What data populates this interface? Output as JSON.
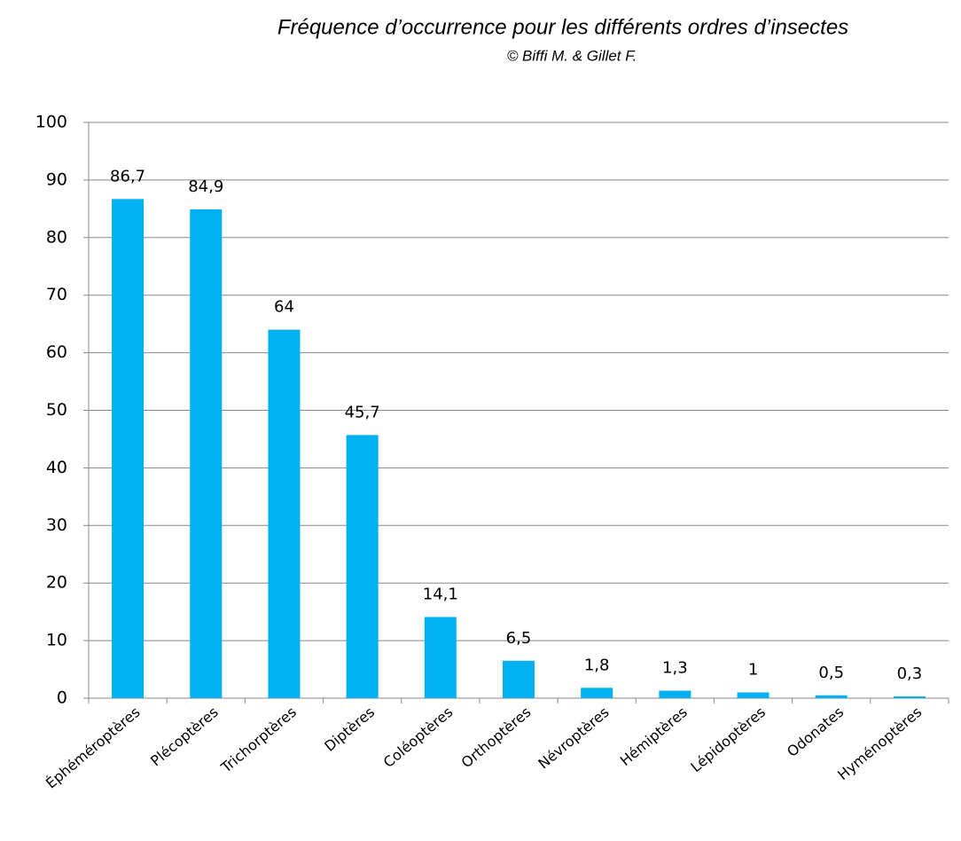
{
  "chart_data": {
    "type": "bar",
    "title": "Fréquence d’occurrence pour les différents ordres d’insectes",
    "subtitle": "© Biffi M. & Gillet F.",
    "categories": [
      "Éphéméroptères",
      "Plécoptères",
      "Trichorptères",
      "Diptères",
      "Coléoptères",
      "Orthoptères",
      "Névroptères",
      "Hémiptères",
      "Lépidoptères",
      "Odonates",
      "Hyménoptères"
    ],
    "values": [
      86.7,
      84.9,
      64,
      45.7,
      14.1,
      6.5,
      1.8,
      1.3,
      1,
      0.5,
      0.3
    ],
    "value_labels": [
      "86,7",
      "84,9",
      "64",
      "45,7",
      "14,1",
      "6,5",
      "1,8",
      "1,3",
      "1",
      "0,5",
      "0,3"
    ],
    "color": "#00b0f0",
    "ylim": [
      0,
      100
    ],
    "yticks": [
      0,
      10,
      20,
      30,
      40,
      50,
      60,
      70,
      80,
      90,
      100
    ],
    "grid": true
  }
}
